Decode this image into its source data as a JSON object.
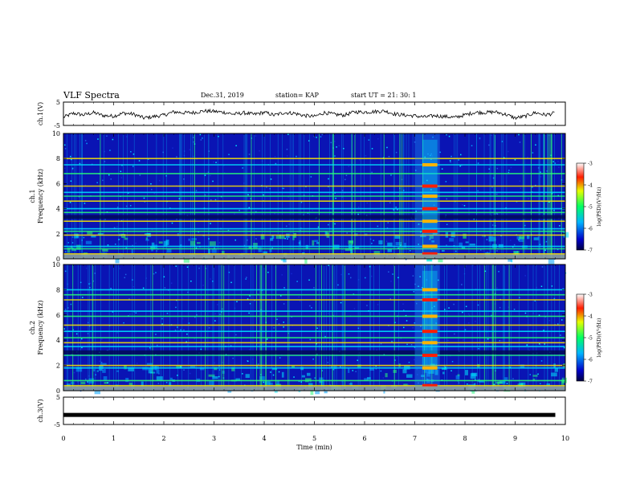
{
  "header": {
    "title": "VLF Spectra",
    "date": "Dec.31, 2019",
    "station": "station= KAP",
    "start": "start UT = 21: 30: 1"
  },
  "colors": {
    "background": "#ffffff",
    "spectrogram_base": "#0a14b4",
    "waveform": "#000000"
  },
  "chart_data": [
    {
      "type": "line",
      "name": "ch1-waveform",
      "ylabel": "ch.1(V)",
      "ylim": [
        -5,
        5
      ],
      "yticks": [
        "5",
        "-5"
      ],
      "xlim": [
        0,
        10
      ],
      "x": [
        0,
        0.2,
        0.4,
        0.6,
        0.8,
        1.0,
        1.2,
        1.4,
        1.6,
        1.8,
        2.0,
        2.2,
        2.4,
        2.6,
        2.8,
        3.0,
        3.2,
        3.4,
        3.6,
        3.8,
        4.0,
        4.2,
        4.4,
        4.6,
        4.8,
        5.0,
        5.2,
        5.4,
        5.6,
        5.8,
        6.0,
        6.2,
        6.4,
        6.6,
        6.8,
        7.0,
        7.2,
        7.4,
        7.6,
        7.8,
        8.0,
        8.2,
        8.4,
        8.6,
        8.8,
        9.0,
        9.2,
        9.4,
        9.6,
        9.8
      ],
      "values": [
        -1.5,
        0.2,
        -0.5,
        0.5,
        -0.8,
        -1.0,
        0.3,
        -0.2,
        -1.8,
        -1.2,
        -0.6,
        0.8,
        0.4,
        0.5,
        1.2,
        1.0,
        0.6,
        -0.2,
        0.4,
        -0.3,
        0.6,
        -0.6,
        0.5,
        0.2,
        -0.8,
        -1.2,
        0.5,
        -0.3,
        -0.6,
        0.8,
        0.7,
        0.9,
        1.2,
        -0.1,
        -0.6,
        -0.9,
        -1.4,
        -0.8,
        -1.2,
        -1.6,
        -0.5,
        0.6,
        0.5,
        0.8,
        -0.2,
        -1.8,
        -1.1,
        0.5,
        -0.5,
        0.3
      ]
    },
    {
      "type": "heatmap",
      "name": "ch1-spectrogram",
      "ylabel": "ch.1 Frequency (kHz)",
      "ylim": [
        0,
        10
      ],
      "yticks": [
        "0",
        "2",
        "4",
        "6",
        "8",
        "10"
      ],
      "xlim": [
        0,
        10
      ],
      "colorbar": {
        "label": "log(PSD)(V²/Hz)",
        "range": [
          -7,
          -3
        ],
        "ticks": [
          "-3",
          "-4",
          "-5",
          "-6",
          "-7"
        ]
      },
      "horizontal_lines_khz": [
        0.4,
        0.8,
        1.0,
        1.9,
        2.2,
        2.4,
        3.0,
        3.7,
        4.0,
        4.6,
        5.0,
        5.3,
        5.8,
        6.8,
        7.5,
        8.0
      ],
      "burst_minutes": [
        7.0,
        7.5
      ]
    },
    {
      "type": "heatmap",
      "name": "ch2-spectrogram",
      "ylabel": "ch.2 Frequency (kHz)",
      "ylim": [
        0,
        10
      ],
      "yticks": [
        "0",
        "2",
        "4",
        "6",
        "8",
        "10"
      ],
      "xlim": [
        0,
        10
      ],
      "colorbar": {
        "label": "log(PSD)(V²/Hz)",
        "range": [
          -7,
          -3
        ],
        "ticks": [
          "-3",
          "-4",
          "-5",
          "-6",
          "-7"
        ]
      },
      "horizontal_lines_khz": [
        0.4,
        0.8,
        1.8,
        2.0,
        2.8,
        3.5,
        3.8,
        4.2,
        4.7,
        5.2,
        5.9,
        6.3,
        7.2,
        7.6,
        8.0
      ],
      "burst_minutes": [
        7.0,
        7.5
      ]
    },
    {
      "type": "line",
      "name": "ch3-waveform",
      "ylabel": "ch.3(V)",
      "ylim": [
        -5,
        5
      ],
      "yticks": [
        "5",
        "-5"
      ],
      "xlim": [
        0,
        10
      ],
      "x": [
        0,
        9.8
      ],
      "values": [
        -1.5,
        -1.5
      ]
    }
  ],
  "xaxis": {
    "label": "Time (min)",
    "ticks": [
      "0",
      "1",
      "2",
      "3",
      "4",
      "5",
      "6",
      "7",
      "8",
      "9",
      "10"
    ]
  }
}
